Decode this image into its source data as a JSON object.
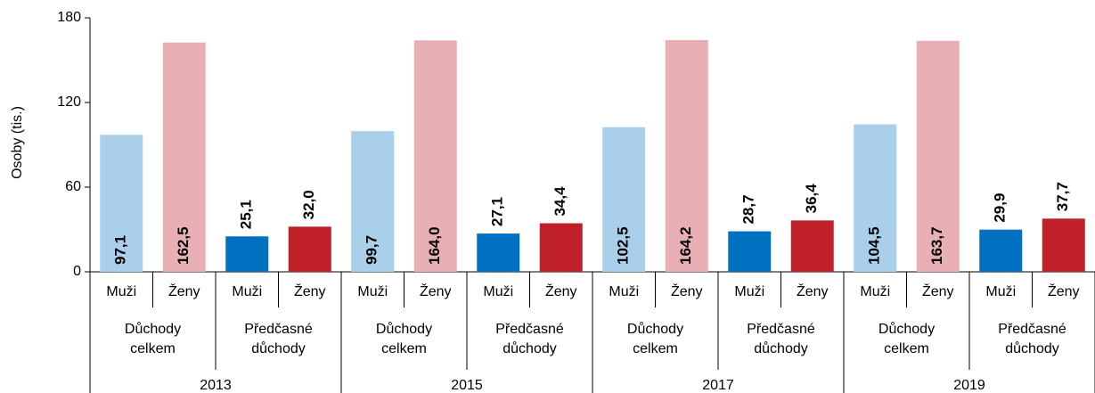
{
  "chart_data": {
    "type": "bar",
    "y_label": "Osoby (tis.)",
    "categories": [
      "Muži",
      "Ženy",
      "Muži",
      "Ženy",
      "Muži",
      "Ženy",
      "Muži",
      "Ženy",
      "Muži",
      "Ženy",
      "Muži",
      "Ženy",
      "Muži",
      "Ženy",
      "Muži",
      "Ženy"
    ],
    "groups": [
      "Důchody celkem",
      "Předčasné důchody",
      "Důchody celkem",
      "Předčasné důchody",
      "Důchody celkem",
      "Předčasné důchody",
      "Důchody celkem",
      "Předčasné důchody"
    ],
    "years": [
      "2013",
      "2015",
      "2017",
      "2019"
    ],
    "values": [
      97.1,
      162.5,
      25.1,
      32.0,
      99.7,
      164.0,
      27.1,
      34.4,
      102.5,
      164.2,
      28.7,
      36.4,
      104.5,
      163.7,
      29.9,
      37.7
    ],
    "value_labels": [
      "97,1",
      "162,5",
      "25,1",
      "32,0",
      "99,7",
      "164,0",
      "27,1",
      "34,4",
      "102,5",
      "164,2",
      "28,7",
      "36,4",
      "104,5",
      "163,7",
      "29,9",
      "37,7"
    ],
    "colors": [
      "#a9cfea",
      "#e8b0b5",
      "#0070c0",
      "#c0202a",
      "#a9cfea",
      "#e8b0b5",
      "#0070c0",
      "#c0202a",
      "#a9cfea",
      "#e8b0b5",
      "#0070c0",
      "#c0202a",
      "#a9cfea",
      "#e8b0b5",
      "#0070c0",
      "#c0202a"
    ],
    "ylim": [
      0,
      180
    ],
    "yticks": [
      0,
      60,
      120,
      180
    ]
  }
}
